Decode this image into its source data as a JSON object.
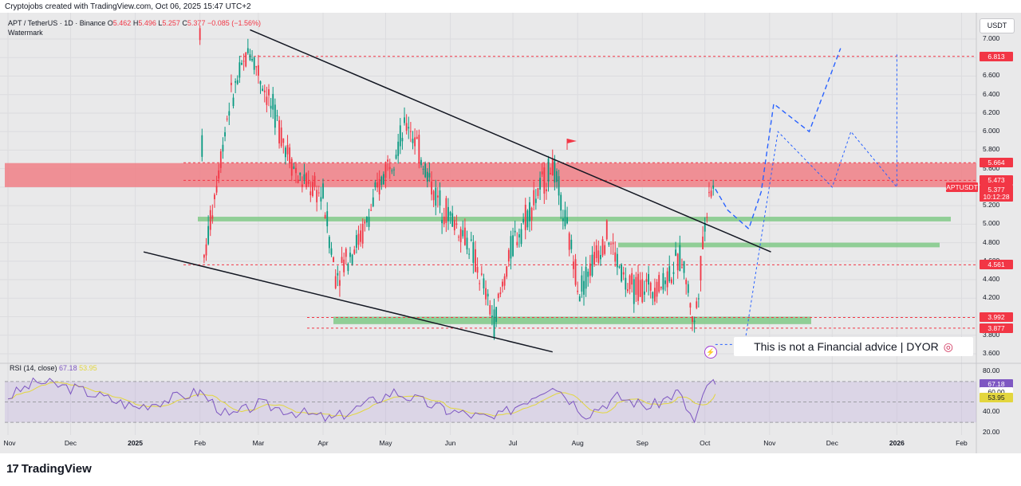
{
  "caption": "Cryptojobs created with TradingView.com, Oct 06, 2025 15:47 UTC+2",
  "legend": {
    "symbol": "APT / TetherUS · 1D · Binance",
    "o_label": "O",
    "o_val": "5.462",
    "h_label": "H",
    "h_val": "5.496",
    "l_label": "L",
    "l_val": "5.257",
    "c_label": "C",
    "c_val": "5.377",
    "change": "−0.085 (−1.56%)",
    "watermark": "Watermark"
  },
  "currency": "USDT",
  "rsi": {
    "label": "RSI (14, close)",
    "value": "67.18",
    "ma_value": "53.95"
  },
  "disclaimer": {
    "text": "This is not a Financial advice | DYOR",
    "icon_name": "target-icon"
  },
  "bolt_icon": "lightning-icon",
  "brand": {
    "logo": "17",
    "name": "TradingView"
  },
  "colors": {
    "up": "#089981",
    "down": "#f23645",
    "resistance": "#f07f86",
    "support": "#80c987",
    "rsi": "#7e57c2",
    "rsi_ma": "#e3d63e",
    "projection": "#2962ff"
  },
  "price_labels": [
    {
      "text": "6.813",
      "price": 6.813,
      "bg": "#f23645",
      "fg": "#ffffff"
    },
    {
      "text": "5.664",
      "price": 5.664,
      "bg": "#f23645",
      "fg": "#ffffff"
    },
    {
      "text": "5.473",
      "price": 5.473,
      "bg": "#f23645",
      "fg": "#ffffff"
    },
    {
      "text": "APTUSDT",
      "price": 5.4,
      "bg": "#f23645",
      "fg": "#ffffff"
    },
    {
      "text": "5.377",
      "price": 5.377,
      "bg": "#f23645",
      "fg": "#ffffff"
    },
    {
      "text": "10:12:28",
      "price": 5.3,
      "bg": "#f23645",
      "fg": "#ffffff"
    },
    {
      "text": "4.561",
      "price": 4.561,
      "bg": "#f23645",
      "fg": "#ffffff"
    },
    {
      "text": "3.992",
      "price": 3.992,
      "bg": "#f23645",
      "fg": "#ffffff"
    },
    {
      "text": "3.877",
      "price": 3.877,
      "bg": "#f23645",
      "fg": "#ffffff"
    }
  ],
  "rsi_labels": [
    {
      "text": "67.18",
      "value": 67.18,
      "bg": "#7e57c2",
      "fg": "#ffffff"
    },
    {
      "text": "60.00",
      "value": 60,
      "bg": "#ffffff",
      "fg": "#131722"
    },
    {
      "text": "53.95",
      "value": 53.95,
      "bg": "#e3d63e",
      "fg": "#131722"
    }
  ],
  "chart_data": {
    "type": "candlestick",
    "title": "APT / TetherUS · 1D · Binance",
    "x_ticks": [
      "Nov",
      "Dec",
      "2025",
      "Feb",
      "Mar",
      "Apr",
      "May",
      "Jun",
      "Jul",
      "Aug",
      "Sep",
      "Oct",
      "Nov",
      "Dec",
      "2026",
      "Feb"
    ],
    "y_ticks": [
      "7.000",
      "6.800",
      "6.600",
      "6.400",
      "6.200",
      "6.000",
      "5.800",
      "5.600",
      "5.400",
      "5.200",
      "5.000",
      "4.800",
      "4.600",
      "4.400",
      "4.200",
      "4.000",
      "3.800",
      "3.600"
    ],
    "ylim": [
      3.5,
      7.25
    ],
    "rsi_ticks": [
      "80.00",
      "60.00",
      "40.00",
      "20.00"
    ],
    "rsi_lim": [
      15,
      90
    ],
    "horizontal_levels": [
      6.813,
      5.664,
      5.473,
      4.561,
      3.992,
      3.877
    ],
    "resistance_zone": [
      5.4,
      5.66
    ],
    "support_zones": [
      [
        5.03,
        5.08
      ],
      [
        4.75,
        4.8
      ],
      [
        3.92,
        4.0
      ]
    ],
    "price_series": [
      {
        "date": "2025-02-01",
        "value": 7.1
      },
      {
        "date": "2025-02-03",
        "value": 4.6
      },
      {
        "date": "2025-02-15",
        "value": 6.3
      },
      {
        "date": "2025-02-25",
        "value": 6.9
      },
      {
        "date": "2025-03-05",
        "value": 6.4
      },
      {
        "date": "2025-03-20",
        "value": 5.5
      },
      {
        "date": "2025-04-01",
        "value": 5.3
      },
      {
        "date": "2025-04-07",
        "value": 4.45
      },
      {
        "date": "2025-04-20",
        "value": 4.9
      },
      {
        "date": "2025-05-01",
        "value": 5.6
      },
      {
        "date": "2025-05-12",
        "value": 6.1
      },
      {
        "date": "2025-05-25",
        "value": 5.3
      },
      {
        "date": "2025-06-10",
        "value": 4.8
      },
      {
        "date": "2025-06-22",
        "value": 3.95
      },
      {
        "date": "2025-07-01",
        "value": 4.8
      },
      {
        "date": "2025-07-20",
        "value": 5.65
      },
      {
        "date": "2025-08-02",
        "value": 4.3
      },
      {
        "date": "2025-08-15",
        "value": 4.9
      },
      {
        "date": "2025-08-25",
        "value": 4.3
      },
      {
        "date": "2025-09-10",
        "value": 4.35
      },
      {
        "date": "2025-09-20",
        "value": 4.65
      },
      {
        "date": "2025-09-26",
        "value": 3.9
      },
      {
        "date": "2025-10-03",
        "value": 5.4
      },
      {
        "date": "2025-10-06",
        "value": 5.377
      }
    ],
    "projection_main": [
      {
        "date": "2025-10-06",
        "value": 5.38
      },
      {
        "date": "2025-10-12",
        "value": 5.15
      },
      {
        "date": "2025-10-22",
        "value": 4.95
      },
      {
        "date": "2025-10-28",
        "value": 5.35
      },
      {
        "date": "2025-11-03",
        "value": 6.3
      },
      {
        "date": "2025-11-20",
        "value": 6.0
      },
      {
        "date": "2025-12-05",
        "value": 6.9
      }
    ],
    "projection_alt": [
      {
        "date": "2025-10-06",
        "value": 3.7
      },
      {
        "date": "2025-10-20",
        "value": 3.7
      },
      {
        "date": "2025-11-05",
        "value": 6.0
      },
      {
        "date": "2025-12-01",
        "value": 5.4
      },
      {
        "date": "2025-12-10",
        "value": 6.0
      },
      {
        "date": "2026-01-01",
        "value": 5.4
      },
      {
        "date": "2026-01-01",
        "value": 6.85
      }
    ],
    "wedge_upper": [
      {
        "date": "2025-02-25",
        "value": 7.1
      },
      {
        "date": "2025-10-25",
        "value": 4.7
      }
    ],
    "wedge_lower": [
      {
        "date": "2025-01-05",
        "value": 4.7
      },
      {
        "date": "2025-07-20",
        "value": 3.62
      }
    ],
    "rsi_series": [
      {
        "date": "2024-11-01",
        "value": 55
      },
      {
        "date": "2024-11-15",
        "value": 70
      },
      {
        "date": "2024-12-05",
        "value": 62
      },
      {
        "date": "2025-01-01",
        "value": 45
      },
      {
        "date": "2025-02-01",
        "value": 60
      },
      {
        "date": "2025-02-15",
        "value": 35
      },
      {
        "date": "2025-03-01",
        "value": 48
      },
      {
        "date": "2025-04-05",
        "value": 33
      },
      {
        "date": "2025-05-05",
        "value": 60
      },
      {
        "date": "2025-05-30",
        "value": 42
      },
      {
        "date": "2025-06-22",
        "value": 33
      },
      {
        "date": "2025-07-20",
        "value": 68
      },
      {
        "date": "2025-08-05",
        "value": 38
      },
      {
        "date": "2025-08-20",
        "value": 55
      },
      {
        "date": "2025-09-05",
        "value": 45
      },
      {
        "date": "2025-09-18",
        "value": 60
      },
      {
        "date": "2025-09-26",
        "value": 30
      },
      {
        "date": "2025-10-03",
        "value": 70
      },
      {
        "date": "2025-10-06",
        "value": 67.18
      }
    ]
  }
}
